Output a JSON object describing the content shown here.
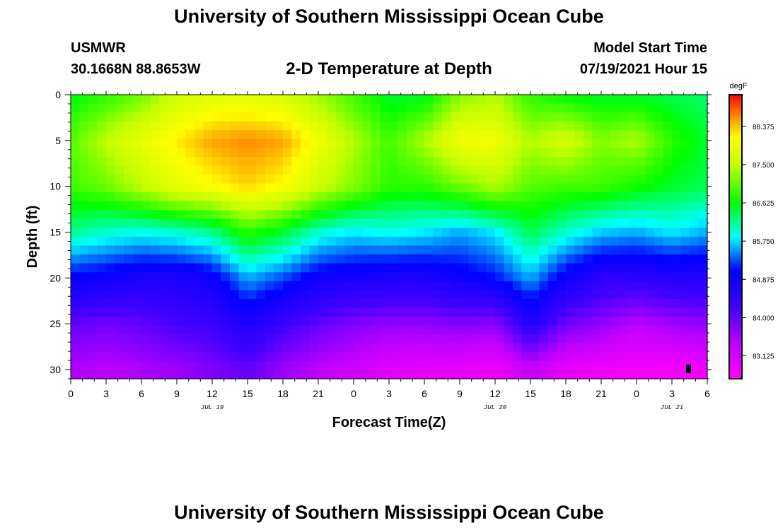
{
  "header": {
    "title": "University of Southern Mississippi Ocean Cube",
    "station": "USMWR",
    "coords": "30.1668N  88.8653W",
    "plot_title": "2-D Temperature at Depth",
    "model_label": "Model Start Time",
    "model_time": "07/19/2021 Hour 15"
  },
  "footer": {
    "title": "University of Southern Mississippi Ocean Cube"
  },
  "chart_data": {
    "type": "heatmap",
    "title": "2-D Temperature at Depth",
    "xlabel": "Forecast Time(Z)",
    "ylabel": "Depth (ft)",
    "x_ticks": [
      "0",
      "3",
      "6",
      "9",
      "12",
      "15",
      "18",
      "21",
      "0",
      "3",
      "6",
      "9",
      "12",
      "15",
      "18",
      "21",
      "0",
      "3",
      "6"
    ],
    "day_labels": [
      {
        "label": "JUL 19",
        "tick_index": 4
      },
      {
        "label": "JUL 20",
        "tick_index": 12
      },
      {
        "label": "JUL 21",
        "tick_index": 17
      }
    ],
    "y_ticks": [
      0,
      5,
      10,
      15,
      20,
      25,
      30
    ],
    "ylim": [
      0,
      31
    ],
    "hours": [
      0,
      3,
      6,
      9,
      12,
      15,
      18,
      21,
      24,
      27,
      30,
      33,
      36,
      39,
      42,
      45,
      48,
      51,
      54
    ],
    "depths": [
      0,
      5,
      10,
      15,
      20,
      25,
      30
    ],
    "temps_degF": [
      [
        86.6,
        86.8,
        87.1,
        87.6,
        87.8,
        87.8,
        87.7,
        87.3,
        86.9,
        86.5,
        86.5,
        87.2,
        87.4,
        86.8,
        86.6,
        86.5,
        86.5,
        86.4,
        86.3
      ],
      [
        87.0,
        87.5,
        87.9,
        88.2,
        88.5,
        88.6,
        88.5,
        88.0,
        87.4,
        86.9,
        87.4,
        88.0,
        88.0,
        87.4,
        87.7,
        87.2,
        87.4,
        86.8,
        86.5
      ],
      [
        86.9,
        87.1,
        87.5,
        87.9,
        88.1,
        88.3,
        88.1,
        87.6,
        87.2,
        86.8,
        86.8,
        87.1,
        87.4,
        87.0,
        86.9,
        86.9,
        86.7,
        86.5,
        86.4
      ],
      [
        86.2,
        86.0,
        85.9,
        86.0,
        86.2,
        86.8,
        86.5,
        86.0,
        85.8,
        85.9,
        85.8,
        85.6,
        85.8,
        86.4,
        86.0,
        85.7,
        85.6,
        85.8,
        85.6
      ],
      [
        85.0,
        84.9,
        84.7,
        84.7,
        84.9,
        85.6,
        85.3,
        84.9,
        84.8,
        84.7,
        84.7,
        84.9,
        85.1,
        85.6,
        84.9,
        84.5,
        84.5,
        84.6,
        84.6
      ],
      [
        84.0,
        83.9,
        84.0,
        84.2,
        84.3,
        84.7,
        84.3,
        84.0,
        83.8,
        83.7,
        83.7,
        83.8,
        83.7,
        84.6,
        83.9,
        83.7,
        83.4,
        83.6,
        83.7
      ],
      [
        83.5,
        83.4,
        83.5,
        83.6,
        83.8,
        84.0,
        83.6,
        83.4,
        83.2,
        83.0,
        82.9,
        82.9,
        82.8,
        83.3,
        82.9,
        82.8,
        82.7,
        82.7,
        82.8
      ]
    ],
    "colorbar": {
      "unit": "degF",
      "labels": [
        "88.375",
        "87.500",
        "86.625",
        "85.750",
        "84.875",
        "84.000",
        "83.125"
      ],
      "range": [
        82.6,
        89.1
      ]
    }
  }
}
